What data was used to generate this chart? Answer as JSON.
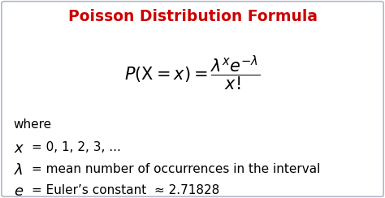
{
  "title": "Poisson Distribution Formula",
  "title_color": "#cc0000",
  "title_fontsize": 13.5,
  "formula_fontsize": 15,
  "where_text": "where",
  "line1_right": "= 0, 1, 2, 3, ...",
  "line2_right": "= mean number of occurrences in the interval",
  "line3_right": "= Euler’s constant  ≈ 2.71828",
  "text_fontsize": 11,
  "italic_fontsize": 13,
  "bg_color": "#ffffff",
  "border_color": "#b0b8c8",
  "text_color": "#000000",
  "fig_width": 4.74,
  "fig_height": 2.44,
  "dpi": 100
}
